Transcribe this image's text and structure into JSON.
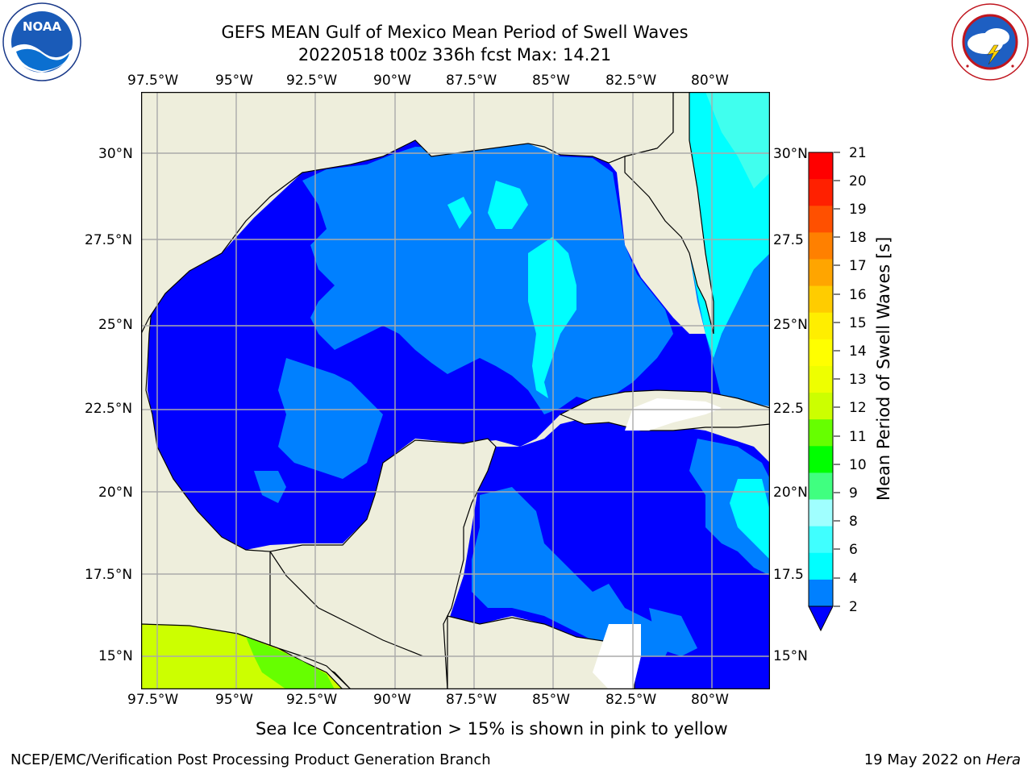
{
  "header": {
    "title_line1": "GEFS MEAN Gulf of Mexico Mean Period of Swell Waves",
    "title_line2": "20220518 t00z 336h fcst   Max: 14.21"
  },
  "logos": {
    "noaa": {
      "text": "NOAA",
      "ring_text": "NATIONAL OCEANIC AND ATMOSPHERIC ADMINISTRATION · U.S. DEPARTMENT OF COMMERCE"
    },
    "nws": {
      "ring_text": "NATIONAL WEATHER SERVICE"
    }
  },
  "map": {
    "lon_labels": [
      "97.5°W",
      "95°W",
      "92.5°W",
      "90°W",
      "87.5°W",
      "85°W",
      "82.5°W",
      "80°W"
    ],
    "lat_labels_left": [
      "30°N",
      "27.5°N",
      "25°N",
      "22.5°N",
      "20°N",
      "17.5°N",
      "15°N"
    ],
    "lat_labels_right": [
      "30°N",
      "27.5",
      "25°N",
      "22.5",
      "20°N",
      "17.5",
      "15°N"
    ],
    "colors": {
      "land": "#eeeedc",
      "grid": "#aaaaaa",
      "coast": "#000000",
      "swell_2_4": "#0000ff",
      "swell_4_6": "#0080ff",
      "swell_6_8": "#00ffff",
      "swell_8_10": "#40ffee",
      "swell_12_14": "#ccff00",
      "swell_10_12": "#66ff00"
    }
  },
  "colorbar": {
    "label": "Mean Period of Swell Waves [s]",
    "ticks": [
      "21",
      "20",
      "19",
      "18",
      "17",
      "16",
      "15",
      "14",
      "13",
      "12",
      "11",
      "10",
      "9",
      "8",
      "6",
      "4",
      "2"
    ],
    "colors": [
      "#ff0000",
      "#ff2000",
      "#ff5000",
      "#ff8000",
      "#ffa500",
      "#ffcc00",
      "#ffee00",
      "#ffff00",
      "#eeff00",
      "#ccff00",
      "#66ff00",
      "#00ff00",
      "#40ff80",
      "#a0ffff",
      "#40ffff",
      "#00ffff",
      "#0080ff",
      "#0000ff"
    ]
  },
  "notes": {
    "sea_ice": "Sea Ice Concentration > 15% is shown in pink to yellow"
  },
  "footer": {
    "left": "NCEP/EMC/Verification Post Processing Product Generation Branch",
    "right_date": "19 May 2022 on ",
    "right_host": "Hera"
  }
}
